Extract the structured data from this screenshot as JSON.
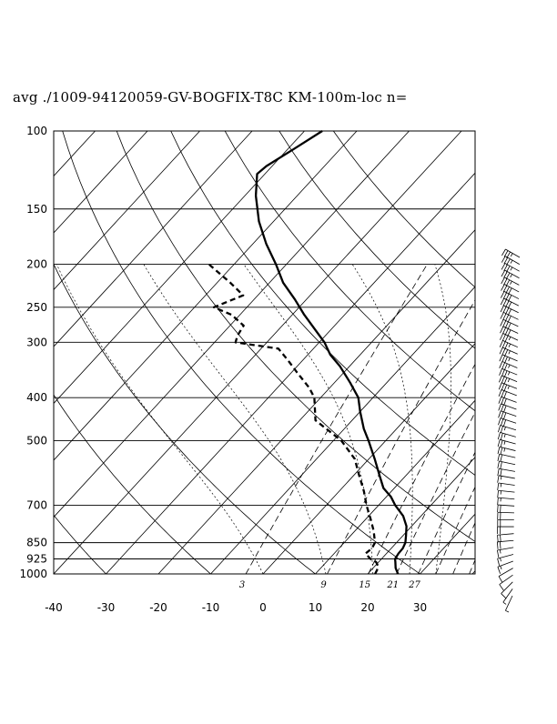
{
  "title": "avg ./1009-94120059-GV-BOGFIX-T8C KM-100m-loc n=",
  "chart_data": {
    "type": "skew-t log-p",
    "title": "avg ./1009-94120059-GV-BOGFIX-T8C KM-100m-loc n=",
    "xlabel": "",
    "ylabel": "",
    "x_ticks": [
      -40,
      -30,
      -20,
      -10,
      0,
      10,
      20,
      30
    ],
    "y_ticks": [
      100,
      150,
      200,
      250,
      300,
      400,
      500,
      700,
      850,
      925,
      1000
    ],
    "xlim": [
      -40,
      40
    ],
    "ylim": [
      1000,
      100
    ],
    "y_scale": "log",
    "mixing_ratio_labels": [
      "3",
      "9",
      "15",
      "21",
      "27"
    ],
    "mixing_ratio_values": [
      3,
      9,
      15,
      21,
      27
    ],
    "series": [
      {
        "style": "solid",
        "points": [
          {
            "p": 1000,
            "t": 25.8
          },
          {
            "p": 970,
            "t": 24.3
          },
          {
            "p": 940,
            "t": 23.2
          },
          {
            "p": 925,
            "t": 22.6
          },
          {
            "p": 900,
            "t": 22.3
          },
          {
            "p": 875,
            "t": 22.2
          },
          {
            "p": 850,
            "t": 21.7
          },
          {
            "p": 820,
            "t": 20.6
          },
          {
            "p": 780,
            "t": 19.0
          },
          {
            "p": 740,
            "t": 16.6
          },
          {
            "p": 700,
            "t": 13.2
          },
          {
            "p": 670,
            "t": 10.9
          },
          {
            "p": 640,
            "t": 7.9
          },
          {
            "p": 600,
            "t": 5.0
          },
          {
            "p": 550,
            "t": 1.1
          },
          {
            "p": 500,
            "t": -3.3
          },
          {
            "p": 470,
            "t": -6.3
          },
          {
            "p": 430,
            "t": -10.0
          },
          {
            "p": 400,
            "t": -12.8
          },
          {
            "p": 370,
            "t": -17.0
          },
          {
            "p": 340,
            "t": -21.8
          },
          {
            "p": 320,
            "t": -25.7
          },
          {
            "p": 300,
            "t": -29.0
          },
          {
            "p": 280,
            "t": -33.2
          },
          {
            "p": 260,
            "t": -37.7
          },
          {
            "p": 240,
            "t": -42.2
          },
          {
            "p": 220,
            "t": -47.4
          },
          {
            "p": 200,
            "t": -52.0
          },
          {
            "p": 180,
            "t": -57.4
          },
          {
            "p": 160,
            "t": -62.8
          },
          {
            "p": 140,
            "t": -67.9
          },
          {
            "p": 125,
            "t": -71.5
          },
          {
            "p": 120,
            "t": -71.1
          },
          {
            "p": 110,
            "t": -68.9
          },
          {
            "p": 100,
            "t": -66.6
          }
        ]
      },
      {
        "style": "dashed",
        "points": [
          {
            "p": 1000,
            "t": 21.4
          },
          {
            "p": 980,
            "t": 21.1
          },
          {
            "p": 960,
            "t": 20.6
          },
          {
            "p": 940,
            "t": 19.5
          },
          {
            "p": 925,
            "t": 17.9
          },
          {
            "p": 900,
            "t": 16.0
          },
          {
            "p": 875,
            "t": 16.3
          },
          {
            "p": 850,
            "t": 15.9
          },
          {
            "p": 800,
            "t": 13.6
          },
          {
            "p": 750,
            "t": 10.8
          },
          {
            "p": 700,
            "t": 7.7
          },
          {
            "p": 650,
            "t": 4.7
          },
          {
            "p": 600,
            "t": 1.1
          },
          {
            "p": 550,
            "t": -2.7
          },
          {
            "p": 500,
            "t": -8.5
          },
          {
            "p": 470,
            "t": -13.5
          },
          {
            "p": 450,
            "t": -17.0
          },
          {
            "p": 400,
            "t": -21.2
          },
          {
            "p": 380,
            "t": -23.9
          },
          {
            "p": 350,
            "t": -29.1
          },
          {
            "p": 330,
            "t": -32.7
          },
          {
            "p": 310,
            "t": -36.7
          },
          {
            "p": 300,
            "t": -46.0
          },
          {
            "p": 290,
            "t": -46.8
          },
          {
            "p": 275,
            "t": -47.4
          },
          {
            "p": 260,
            "t": -51.6
          },
          {
            "p": 250,
            "t": -56.3
          },
          {
            "p": 235,
            "t": -52.8
          },
          {
            "p": 220,
            "t": -57.5
          },
          {
            "p": 200,
            "t": -64.8
          }
        ]
      }
    ],
    "wind_barbs": {
      "wind_direction": [
        205,
        215,
        225,
        235,
        240,
        250,
        255,
        260,
        265,
        265,
        270,
        270,
        272,
        274,
        275,
        276,
        278,
        280,
        280,
        282,
        283,
        284,
        285,
        286,
        287,
        288,
        289,
        290,
        290,
        291,
        291,
        292,
        292,
        293,
        293,
        294,
        294,
        295,
        295,
        295,
        296,
        296,
        297,
        297,
        298,
        298,
        299,
        299,
        300,
        300
      ],
      "wind_speed": [
        5,
        5,
        10,
        10,
        10,
        15,
        15,
        15,
        20,
        20,
        20,
        20,
        20,
        20,
        15,
        15,
        15,
        15,
        20,
        20,
        20,
        25,
        25,
        25,
        25,
        30,
        30,
        30,
        30,
        30,
        35,
        35,
        35,
        35,
        35,
        35,
        35,
        35,
        40,
        40,
        40,
        40,
        40,
        40,
        40,
        35,
        35,
        35,
        35,
        35
      ]
    }
  }
}
